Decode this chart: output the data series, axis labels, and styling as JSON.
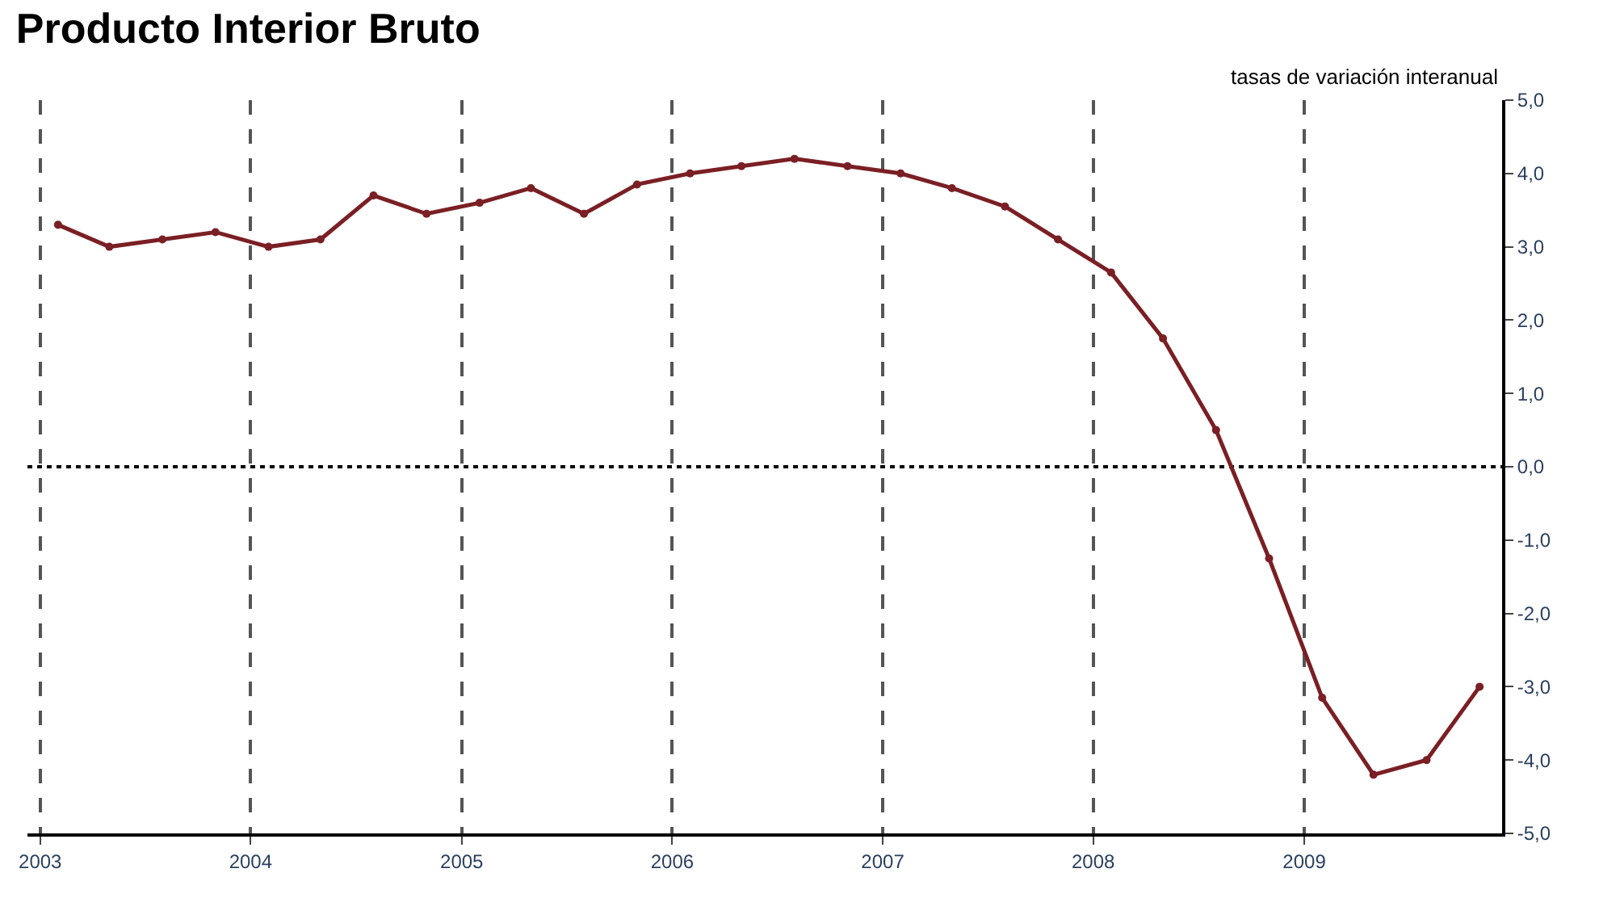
{
  "chart_data": {
    "type": "line",
    "title": "Producto Interior Bruto",
    "annotations": [
      "tasas de variación interanual"
    ],
    "x": [
      "2003-02",
      "2003-05",
      "2003-08",
      "2003-11",
      "2004-02",
      "2004-05",
      "2004-08",
      "2004-11",
      "2005-02",
      "2005-05",
      "2005-08",
      "2005-11",
      "2006-02",
      "2006-05",
      "2006-08",
      "2006-11",
      "2007-02",
      "2007-05",
      "2007-08",
      "2007-11",
      "2008-02",
      "2008-05",
      "2008-08",
      "2008-11",
      "2009-02",
      "2009-05",
      "2009-08",
      "2009-11"
    ],
    "series": [
      {
        "color": "#7a1f24",
        "values": [
          3.3,
          3.0,
          3.1,
          3.2,
          3.0,
          3.1,
          3.7,
          3.45,
          3.6,
          3.8,
          3.45,
          3.85,
          4.0,
          4.1,
          4.2,
          4.1,
          4.0,
          3.8,
          3.55,
          3.1,
          2.65,
          1.75,
          0.5,
          -1.25,
          -3.15,
          -4.2,
          -4.0,
          -3.0
        ]
      }
    ],
    "xlim": [
      "2002-12-10",
      "2009-12-10"
    ],
    "xticks": [
      "2003",
      "2004",
      "2005",
      "2006",
      "2007",
      "2008",
      "2009"
    ],
    "ylim": [
      -5,
      5
    ],
    "yticks": [
      {
        "value": 5,
        "label": "5,0"
      },
      {
        "value": 4,
        "label": "4,0"
      },
      {
        "value": 3,
        "label": "3,0"
      },
      {
        "value": 2,
        "label": "2,0"
      },
      {
        "value": 1,
        "label": "1,0"
      },
      {
        "value": 0,
        "label": "0,0"
      },
      {
        "value": -1,
        "label": "-1,0"
      },
      {
        "value": -2,
        "label": "-2,0"
      },
      {
        "value": -3,
        "label": "-3,0"
      },
      {
        "value": -4,
        "label": "-4,0"
      },
      {
        "value": -5,
        "label": "-5,0"
      }
    ],
    "ref_lines": [
      {
        "axis": "y",
        "value": 0,
        "label": null,
        "color": "#000000",
        "line_style": "dotted"
      }
    ],
    "grid": "x",
    "marker": "circle",
    "line_style": "solid"
  }
}
